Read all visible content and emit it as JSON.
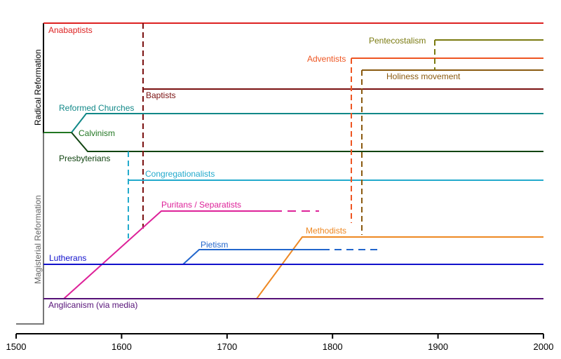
{
  "colors": {
    "axis": "#000000",
    "trunk": "#777777",
    "anabaptists": "#dd2222",
    "baptists": "#7a1010",
    "pentecostalism": "#7a7a10",
    "adventists": "#ee5522",
    "holiness": "#8a5a10",
    "reformed": "#118888",
    "calvinism": "#227722",
    "presbyterians": "#114411",
    "congregationalists": "#22aacc",
    "puritans": "#dd2299",
    "methodists": "#ee8822",
    "pietism": "#2266cc",
    "lutherans": "#1111cc",
    "anglicanism": "#551177",
    "radical_label": "#000000",
    "magisterial_label": "#666666"
  },
  "side_labels": {
    "radical": "Radical Reformation",
    "magisterial": "Magisterial Reformation"
  },
  "axis": {
    "ticks": [
      {
        "year": 1500,
        "label": "1500"
      },
      {
        "year": 1600,
        "label": "1600"
      },
      {
        "year": 1700,
        "label": "1700"
      },
      {
        "year": 1800,
        "label": "1800"
      },
      {
        "year": 1900,
        "label": "1900"
      },
      {
        "year": 2000,
        "label": "2000"
      }
    ]
  },
  "movements": {
    "anabaptists": "Anabaptists",
    "pentecostalism": "Pentecostalism",
    "adventists": "Adventists",
    "holiness": "Holiness movement",
    "baptists": "Baptists",
    "reformed": "Reformed Churches",
    "calvinism": "Calvinism",
    "presbyterians": "Presbyterians",
    "congregationalists": "Congregationalists",
    "puritans": "Puritans / Separatists",
    "methodists": "Methodists",
    "pietism": "Pietism",
    "lutherans": "Lutherans",
    "anglicanism": "Anglicanism (via media)"
  }
}
